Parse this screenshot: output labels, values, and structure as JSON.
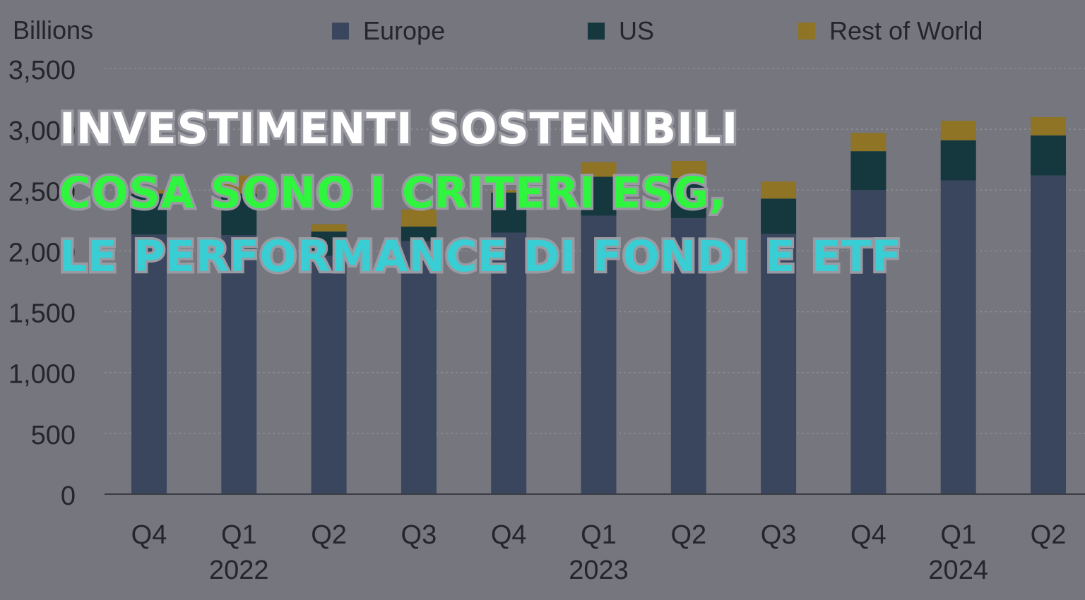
{
  "colors": {
    "background": "#76767f",
    "europe": "#3a465e",
    "us": "#15373e",
    "rest_of_world": "#8e7424",
    "headline_1": "#ffffff",
    "headline_2": "#2ff53e",
    "headline_3": "#39cdd4",
    "axis_text": "#24262c"
  },
  "headlines": {
    "line1": "INVESTIMENTI SOSTENIBILI",
    "line2": "COSA SONO I CRITERI ESG,",
    "line3": "LE PERFORMANCE DI FONDI E ETF"
  },
  "chart_data": {
    "type": "bar",
    "stacked": true,
    "ylabel": "Billions",
    "ylim": [
      0,
      3500
    ],
    "yticks": [
      "0",
      "500",
      "1,000",
      "1,500",
      "2,000",
      "2,500",
      "3,000",
      "3,500"
    ],
    "grid": true,
    "legend_position": "top",
    "categories": [
      "Q4",
      "Q1",
      "Q2",
      "Q3",
      "Q4",
      "Q1",
      "Q2",
      "Q3",
      "Q4",
      "Q1",
      "Q2"
    ],
    "year_labels": [
      {
        "index": 1,
        "label": "2022"
      },
      {
        "index": 5,
        "label": "2023"
      },
      {
        "index": 9,
        "label": "2024"
      }
    ],
    "series": [
      {
        "name": "Europe",
        "color": "#3a465e",
        "values": [
          2135,
          2130,
          1960,
          2080,
          2150,
          2290,
          2270,
          2140,
          2500,
          2580,
          2620
        ]
      },
      {
        "name": "US",
        "color": "#15373e",
        "values": [
          335,
          340,
          200,
          120,
          330,
          320,
          330,
          290,
          320,
          330,
          330
        ]
      },
      {
        "name": "Rest of World",
        "color": "#8e7424",
        "values": [
          30,
          150,
          60,
          140,
          20,
          120,
          140,
          140,
          150,
          160,
          150
        ]
      }
    ]
  }
}
